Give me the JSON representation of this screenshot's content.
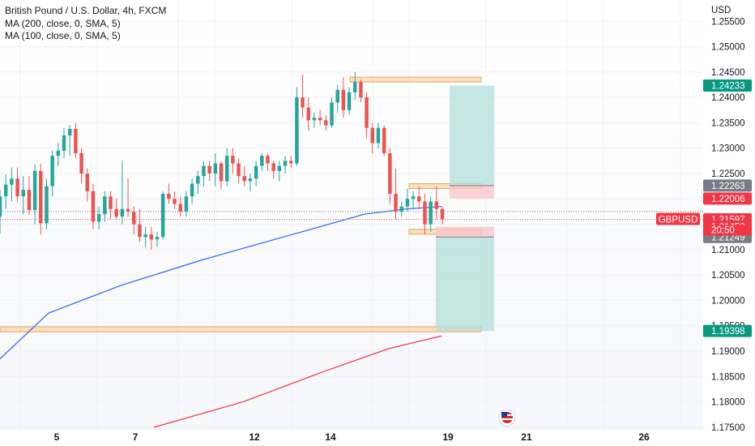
{
  "legend": {
    "title": "British Pound / U.S. Dollar, 4h, FXCM",
    "ma200": "MA (200, close, 0, SMA, 5)",
    "ma100": "MA (100, close, 0, SMA, 5)"
  },
  "currency": "USD",
  "symbol_tag": "GBPUSD",
  "colors": {
    "up": "#26a69a",
    "down": "#ef5350",
    "ma100": "#2962ff",
    "ma200": "#f23645",
    "zone": "#f7c98b",
    "zone_border": "#e8a860",
    "tp": "#b2dfdb",
    "sl": "#f8c4c8"
  },
  "chart_data": {
    "type": "candlestick",
    "title": "British Pound / U.S. Dollar, 4h, FXCM",
    "ylim": [
      1.1745,
      1.2592
    ],
    "yticks": [
      1.255,
      1.25,
      1.245,
      1.24,
      1.235,
      1.23,
      1.225,
      1.22,
      1.215,
      1.21,
      1.205,
      1.2,
      1.195,
      1.19,
      1.185,
      1.18,
      1.175
    ],
    "ytick_labels": [
      "1.25500",
      "1.25000",
      "1.24500",
      "1.24000",
      "1.23500",
      "1.23000",
      "1.22500",
      "1.22000",
      "1.21500",
      "1.21000",
      "1.20500",
      "1.20000",
      "1.19500",
      "1.19000",
      "1.18500",
      "1.18000",
      "1.17500"
    ],
    "xticks": [
      "5",
      "7",
      "12",
      "14",
      "19",
      "21",
      "26"
    ],
    "candles": [
      [
        1.2165,
        1.2218,
        1.2132,
        1.2205
      ],
      [
        1.2205,
        1.2248,
        1.218,
        1.2228
      ],
      [
        1.2228,
        1.2262,
        1.2195,
        1.224
      ],
      [
        1.224,
        1.2262,
        1.2195,
        1.2205
      ],
      [
        1.2205,
        1.2245,
        1.217,
        1.2218
      ],
      [
        1.2218,
        1.2245,
        1.2168,
        1.2178
      ],
      [
        1.2178,
        1.2268,
        1.215,
        1.2255
      ],
      [
        1.2255,
        1.227,
        1.213,
        1.2152
      ],
      [
        1.2152,
        1.224,
        1.214,
        1.2225
      ],
      [
        1.2225,
        1.2295,
        1.2205,
        1.2285
      ],
      [
        1.2285,
        1.231,
        1.2265,
        1.2295
      ],
      [
        1.2295,
        1.234,
        1.228,
        1.2325
      ],
      [
        1.2325,
        1.2345,
        1.2285,
        1.2338
      ],
      [
        1.2338,
        1.235,
        1.228,
        1.229
      ],
      [
        1.229,
        1.23,
        1.223,
        1.225
      ],
      [
        1.225,
        1.226,
        1.2195,
        1.2215
      ],
      [
        1.2215,
        1.223,
        1.214,
        1.2155
      ],
      [
        1.2155,
        1.2185,
        1.214,
        1.217
      ],
      [
        1.217,
        1.2215,
        1.2155,
        1.2205
      ],
      [
        1.2205,
        1.2215,
        1.216,
        1.218
      ],
      [
        1.218,
        1.22,
        1.216,
        1.2165
      ],
      [
        1.2165,
        1.2275,
        1.215,
        1.218
      ],
      [
        1.218,
        1.224,
        1.2165,
        1.2175
      ],
      [
        1.2175,
        1.2185,
        1.213,
        1.215
      ],
      [
        1.215,
        1.218,
        1.2115,
        1.2125
      ],
      [
        1.2125,
        1.2145,
        1.2105,
        1.213
      ],
      [
        1.213,
        1.2145,
        1.21,
        1.212
      ],
      [
        1.212,
        1.2135,
        1.2105,
        1.2125
      ],
      [
        1.2125,
        1.2215,
        1.212,
        1.221
      ],
      [
        1.221,
        1.223,
        1.219,
        1.22
      ],
      [
        1.22,
        1.2215,
        1.218,
        1.219
      ],
      [
        1.219,
        1.2205,
        1.2165,
        1.2175
      ],
      [
        1.2175,
        1.2215,
        1.2165,
        1.2205
      ],
      [
        1.2205,
        1.224,
        1.219,
        1.223
      ],
      [
        1.223,
        1.2255,
        1.221,
        1.2245
      ],
      [
        1.2245,
        1.2275,
        1.2225,
        1.2265
      ],
      [
        1.2265,
        1.2275,
        1.2235,
        1.225
      ],
      [
        1.225,
        1.229,
        1.2225,
        1.227
      ],
      [
        1.227,
        1.2275,
        1.222,
        1.2235
      ],
      [
        1.2235,
        1.23,
        1.2225,
        1.2285
      ],
      [
        1.2285,
        1.23,
        1.225,
        1.227
      ],
      [
        1.227,
        1.228,
        1.223,
        1.2245
      ],
      [
        1.2245,
        1.2265,
        1.2225,
        1.2235
      ],
      [
        1.2235,
        1.225,
        1.2215,
        1.224
      ],
      [
        1.224,
        1.2275,
        1.2225,
        1.2265
      ],
      [
        1.2265,
        1.229,
        1.2255,
        1.2285
      ],
      [
        1.2285,
        1.229,
        1.2255,
        1.227
      ],
      [
        1.227,
        1.2275,
        1.224,
        1.2255
      ],
      [
        1.2255,
        1.2275,
        1.2235,
        1.2265
      ],
      [
        1.2265,
        1.2285,
        1.225,
        1.2275
      ],
      [
        1.2275,
        1.2285,
        1.226,
        1.227
      ],
      [
        1.227,
        1.242,
        1.2265,
        1.24
      ],
      [
        1.24,
        1.2445,
        1.236,
        1.238
      ],
      [
        1.238,
        1.24,
        1.2335,
        1.2355
      ],
      [
        1.2355,
        1.237,
        1.234,
        1.236
      ],
      [
        1.236,
        1.2375,
        1.2345,
        1.2355
      ],
      [
        1.2355,
        1.2365,
        1.2335,
        1.2345
      ],
      [
        1.2345,
        1.24,
        1.234,
        1.239
      ],
      [
        1.239,
        1.2425,
        1.237,
        1.2415
      ],
      [
        1.2415,
        1.244,
        1.236,
        1.2375
      ],
      [
        1.2375,
        1.242,
        1.2365,
        1.241
      ],
      [
        1.241,
        1.245,
        1.2395,
        1.243
      ],
      [
        1.243,
        1.2435,
        1.239,
        1.24
      ],
      [
        1.24,
        1.241,
        1.232,
        1.234
      ],
      [
        1.234,
        1.235,
        1.229,
        1.231
      ],
      [
        1.231,
        1.235,
        1.23,
        1.234
      ],
      [
        1.234,
        1.2345,
        1.2285,
        1.229
      ],
      [
        1.229,
        1.23,
        1.219,
        1.221
      ],
      [
        1.221,
        1.226,
        1.216,
        1.2175
      ],
      [
        1.2175,
        1.2195,
        1.2165,
        1.2185
      ],
      [
        1.2185,
        1.222,
        1.2175,
        1.22
      ],
      [
        1.22,
        1.2215,
        1.218,
        1.2205
      ],
      [
        1.2205,
        1.2225,
        1.218,
        1.2195
      ],
      [
        1.2195,
        1.221,
        1.213,
        1.215
      ],
      [
        1.215,
        1.2205,
        1.2135,
        1.2195
      ],
      [
        1.2195,
        1.2225,
        1.216,
        1.218
      ],
      [
        1.218,
        1.2185,
        1.215,
        1.216
      ]
    ],
    "ma100": [
      [
        0,
        1.1885
      ],
      [
        60,
        1.1975
      ],
      [
        150,
        1.203
      ],
      [
        250,
        1.208
      ],
      [
        350,
        1.2125
      ],
      [
        450,
        1.217
      ],
      [
        500,
        1.218
      ],
      [
        545,
        1.2185
      ]
    ],
    "ma200": [
      [
        190,
        1.175
      ],
      [
        300,
        1.18
      ],
      [
        400,
        1.186
      ],
      [
        480,
        1.1905
      ],
      [
        545,
        1.193
      ]
    ],
    "zones": [
      {
        "x0": 432,
        "x1": 594,
        "y0": 1.244,
        "y1": 1.2432
      },
      {
        "x0": 505,
        "x1": 595,
        "y0": 1.223,
        "y1": 1.2222
      },
      {
        "x0": 505,
        "x1": 595,
        "y0": 1.214,
        "y1": 1.2132
      },
      {
        "x0": 0,
        "x1": 594,
        "y0": 1.1948,
        "y1": 1.1938
      }
    ],
    "position_tp": {
      "x0": 555,
      "x1": 610,
      "top": 1.24233,
      "bottom": 1.22263
    },
    "position_sl_short": {
      "x0": 555,
      "x1": 610,
      "top": 1.22263,
      "bottom": 1.22006
    },
    "position_sl_long": {
      "x0": 538,
      "x1": 610,
      "top": 1.21453,
      "bottom": 1.21249
    },
    "position_tp_long": {
      "x0": 538,
      "x1": 610,
      "top": 1.21249,
      "bottom": 1.19398
    },
    "price_tags": [
      {
        "value": 1.24233,
        "label": "1.24233",
        "color": "#089981"
      },
      {
        "value": 1.22263,
        "label": "1.22263",
        "color": "#787b86"
      },
      {
        "value": 1.22006,
        "label": "1.22006",
        "color": "#f23645"
      },
      {
        "value": 1.21597,
        "label": "1.21597",
        "color": "#f23645"
      },
      {
        "value": 1.21453,
        "label": "1.21453",
        "color": "#f23645"
      },
      {
        "value": 1.21249,
        "label": "1.21249",
        "color": "#787b86"
      },
      {
        "value": 1.19398,
        "label": "1.19398",
        "color": "#089981"
      }
    ],
    "countdown": "20:50",
    "last_price": 1.21597
  }
}
